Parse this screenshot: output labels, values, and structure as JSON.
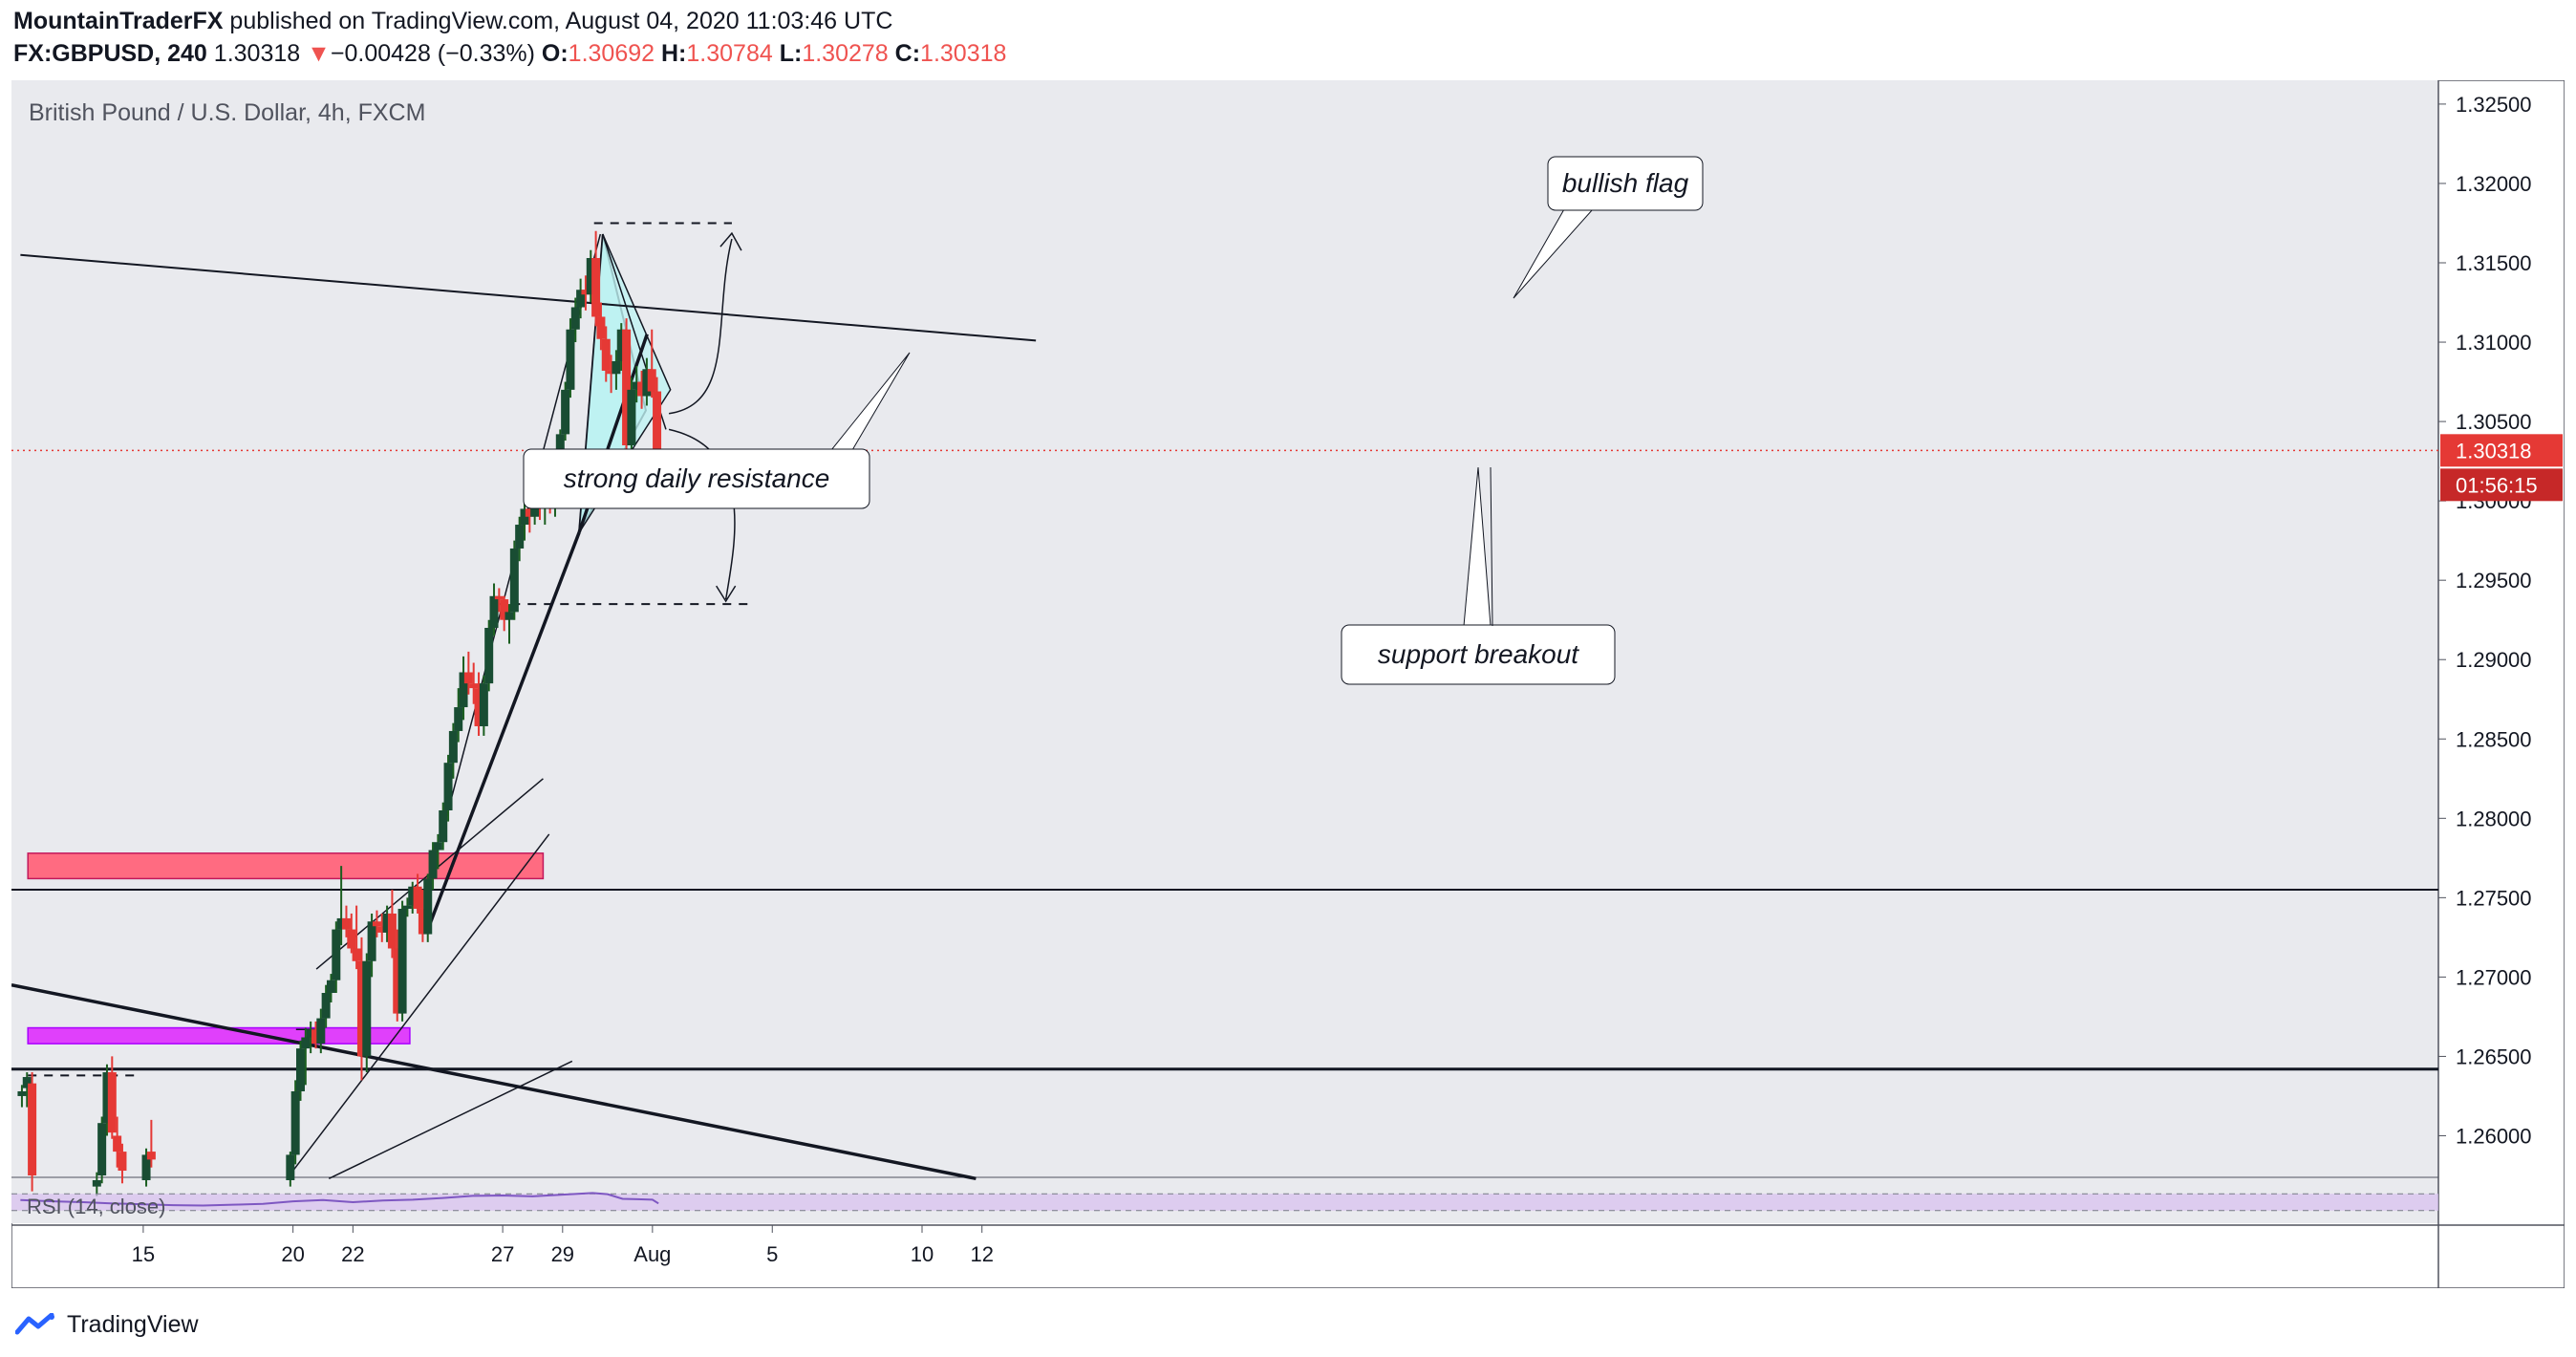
{
  "header": {
    "author": "MountainTraderFX",
    "published_text": "published on TradingView.com, August 04, 2020 11:03:46 UTC",
    "symbol": "FX:GBPUSD, 240",
    "last": "1.30318",
    "change_arrow": "▼",
    "change": "−0.00428 (−0.33%)",
    "o_label": "O:",
    "o": "1.30692",
    "h_label": "H:",
    "h": "1.30784",
    "l_label": "L:",
    "l": "1.30278",
    "c_label": "C:",
    "c": "1.30318"
  },
  "chart_data": {
    "type": "candlestick",
    "title": "British Pound / U.S. Dollar, 4h, FXCM",
    "ylim": [
      1.2575,
      1.3265
    ],
    "y_ticks": [
      "1.32500",
      "1.32000",
      "1.31500",
      "1.31000",
      "1.30500",
      "1.30000",
      "1.29500",
      "1.29000",
      "1.28500",
      "1.28000",
      "1.27500",
      "1.27000",
      "1.26500",
      "1.26000"
    ],
    "x_ticks": [
      {
        "label": "15",
        "t": 15
      },
      {
        "label": "20",
        "t": 20
      },
      {
        "label": "22",
        "t": 22
      },
      {
        "label": "27",
        "t": 27
      },
      {
        "label": "29",
        "t": 29
      },
      {
        "label": "Aug",
        "t": 32
      },
      {
        "label": "5",
        "t": 36
      },
      {
        "label": "10",
        "t": 41
      },
      {
        "label": "12",
        "t": 43
      }
    ],
    "last_price": {
      "value": 1.30318,
      "label": "1.30318",
      "countdown": "01:56:15",
      "color": "#e53935"
    },
    "candles": [
      [
        10.95,
        1.2625,
        1.2632,
        1.2618,
        1.2628
      ],
      [
        11.12,
        1.263,
        1.264,
        1.2618,
        1.2637
      ],
      [
        11.29,
        1.2633,
        1.264,
        1.2565,
        1.2575
      ],
      [
        13.45,
        1.2568,
        1.2577,
        1.2562,
        1.2572
      ],
      [
        13.62,
        1.2575,
        1.2612,
        1.257,
        1.2608
      ],
      [
        13.79,
        1.2608,
        1.2645,
        1.26,
        1.264
      ],
      [
        13.96,
        1.264,
        1.265,
        1.2598,
        1.2602
      ],
      [
        14.13,
        1.26,
        1.2612,
        1.258,
        1.259
      ],
      [
        14.3,
        1.259,
        1.2595,
        1.257,
        1.2578
      ],
      [
        15.1,
        1.2572,
        1.2592,
        1.2568,
        1.2588
      ],
      [
        15.27,
        1.259,
        1.261,
        1.258,
        1.2585
      ],
      [
        19.91,
        1.2572,
        1.259,
        1.2568,
        1.2588
      ],
      [
        20.08,
        1.2588,
        1.2635,
        1.2582,
        1.2628
      ],
      [
        20.25,
        1.2628,
        1.266,
        1.2622,
        1.2655
      ],
      [
        20.42,
        1.2655,
        1.2668,
        1.2632,
        1.2662
      ],
      [
        20.59,
        1.2662,
        1.2672,
        1.2652,
        1.2667
      ],
      [
        20.76,
        1.2667,
        1.2672,
        1.2655,
        1.2658
      ],
      [
        20.93,
        1.2658,
        1.268,
        1.2652,
        1.2674
      ],
      [
        21.1,
        1.2674,
        1.2695,
        1.2668,
        1.269
      ],
      [
        21.27,
        1.269,
        1.2702,
        1.2684,
        1.2698
      ],
      [
        21.44,
        1.2698,
        1.2735,
        1.269,
        1.273
      ],
      [
        21.61,
        1.273,
        1.277,
        1.272,
        1.2737
      ],
      [
        21.78,
        1.2737,
        1.2745,
        1.2725,
        1.273
      ],
      [
        21.95,
        1.273,
        1.274,
        1.2715,
        1.2718
      ],
      [
        22.12,
        1.2718,
        1.2745,
        1.2705,
        1.271
      ],
      [
        22.29,
        1.271,
        1.2725,
        1.2635,
        1.265
      ],
      [
        22.46,
        1.265,
        1.2715,
        1.264,
        1.271
      ],
      [
        22.63,
        1.271,
        1.274,
        1.27,
        1.2735
      ],
      [
        22.8,
        1.2735,
        1.2742,
        1.2725,
        1.2732
      ],
      [
        22.97,
        1.2732,
        1.274,
        1.2722,
        1.2728
      ],
      [
        23.14,
        1.2728,
        1.2745,
        1.2722,
        1.274
      ],
      [
        23.31,
        1.274,
        1.2755,
        1.2712,
        1.2718
      ],
      [
        23.48,
        1.2718,
        1.273,
        1.2672,
        1.2677
      ],
      [
        23.65,
        1.2677,
        1.2748,
        1.2672,
        1.2743
      ],
      [
        23.82,
        1.2743,
        1.275,
        1.2738,
        1.2745
      ],
      [
        23.99,
        1.2745,
        1.276,
        1.274,
        1.2757
      ],
      [
        24.16,
        1.2757,
        1.2765,
        1.274,
        1.2743
      ],
      [
        24.33,
        1.2743,
        1.2755,
        1.2722,
        1.2727
      ],
      [
        24.5,
        1.2727,
        1.2765,
        1.2722,
        1.2762
      ],
      [
        24.67,
        1.2762,
        1.2785,
        1.2755,
        1.278
      ],
      [
        24.84,
        1.278,
        1.279,
        1.2768,
        1.2785
      ],
      [
        25.01,
        1.2785,
        1.281,
        1.278,
        1.2805
      ],
      [
        25.18,
        1.2805,
        1.284,
        1.2798,
        1.2835
      ],
      [
        25.35,
        1.2835,
        1.286,
        1.2825,
        1.2855
      ],
      [
        25.52,
        1.2855,
        1.2882,
        1.2848,
        1.287
      ],
      [
        25.69,
        1.287,
        1.2902,
        1.2862,
        1.2892
      ],
      [
        25.86,
        1.2892,
        1.2905,
        1.2878,
        1.2885
      ],
      [
        26.03,
        1.2885,
        1.2898,
        1.2872,
        1.2882
      ],
      [
        26.2,
        1.2882,
        1.2892,
        1.2852,
        1.2858
      ],
      [
        26.37,
        1.2858,
        1.289,
        1.2852,
        1.2885
      ],
      [
        26.54,
        1.2885,
        1.2925,
        1.288,
        1.292
      ],
      [
        26.71,
        1.292,
        1.2948,
        1.2915,
        1.294
      ],
      [
        26.88,
        1.294,
        1.2945,
        1.293,
        1.2938
      ],
      [
        27.05,
        1.2938,
        1.294,
        1.2918,
        1.2925
      ],
      [
        27.22,
        1.2925,
        1.2935,
        1.291,
        1.293
      ],
      [
        27.39,
        1.293,
        1.2975,
        1.2925,
        1.297
      ],
      [
        27.56,
        1.297,
        1.299,
        1.2962,
        1.2985
      ],
      [
        27.73,
        1.2985,
        1.3002,
        1.2975,
        1.2995
      ],
      [
        27.9,
        1.2995,
        1.3005,
        1.298,
        1.299
      ],
      [
        28.07,
        1.299,
        1.302,
        1.2985,
        1.3015
      ],
      [
        28.24,
        1.3015,
        1.3022,
        1.2988,
        1.2995
      ],
      [
        28.41,
        1.2995,
        1.3008,
        1.2985,
        1.3005
      ],
      [
        28.58,
        1.3005,
        1.3012,
        1.2992,
        1.2998
      ],
      [
        28.75,
        1.2998,
        1.3012,
        1.299,
        1.3008
      ],
      [
        28.92,
        1.3008,
        1.3045,
        1.3002,
        1.3042
      ],
      [
        29.09,
        1.3042,
        1.3075,
        1.3038,
        1.307
      ],
      [
        29.26,
        1.307,
        1.3115,
        1.3065,
        1.3108
      ],
      [
        29.43,
        1.3108,
        1.3128,
        1.31,
        1.3122
      ],
      [
        29.6,
        1.3122,
        1.314,
        1.3115,
        1.3133
      ],
      [
        29.77,
        1.3133,
        1.3142,
        1.312,
        1.313
      ],
      [
        29.94,
        1.313,
        1.3158,
        1.3125,
        1.3153
      ],
      [
        30.11,
        1.3153,
        1.317,
        1.311,
        1.3116
      ],
      [
        30.28,
        1.3116,
        1.3125,
        1.3095,
        1.3102
      ],
      [
        30.45,
        1.3102,
        1.311,
        1.3075,
        1.3082
      ],
      [
        30.62,
        1.3082,
        1.3092,
        1.3068,
        1.308
      ],
      [
        30.79,
        1.308,
        1.3095,
        1.307,
        1.3088
      ],
      [
        30.96,
        1.3088,
        1.3112,
        1.3082,
        1.3108
      ],
      [
        31.13,
        1.3108,
        1.3115,
        1.3025,
        1.3035
      ],
      [
        31.3,
        1.3035,
        1.3078,
        1.3025,
        1.307
      ],
      [
        31.47,
        1.307,
        1.3085,
        1.3062,
        1.3075
      ],
      [
        31.64,
        1.3075,
        1.3082,
        1.3058,
        1.3066
      ],
      [
        31.81,
        1.3066,
        1.309,
        1.306,
        1.3083
      ],
      [
        31.98,
        1.3083,
        1.3108,
        1.3065,
        1.3069
      ],
      [
        32.15,
        1.3069,
        1.3078,
        1.3028,
        1.3032
      ]
    ],
    "rsi": {
      "label": "RSI (14, close)",
      "upper": 70,
      "lower": 30,
      "t": [
        10.9,
        12,
        13,
        14,
        15,
        16,
        17,
        18,
        19,
        20,
        21,
        22,
        23,
        24,
        25,
        26,
        27,
        28,
        29,
        30,
        30.5,
        31,
        31.5,
        32,
        32.2
      ],
      "values": [
        55,
        52,
        50,
        47,
        45,
        43,
        42,
        44,
        46,
        52,
        55,
        50,
        54,
        56,
        60,
        65,
        66,
        64,
        68,
        72,
        69,
        58,
        57,
        56,
        47
      ]
    },
    "lines": {
      "daily_resistance": {
        "t1": 10.9,
        "y1": 1.3155,
        "t2": 44.8,
        "y2": 1.3101
      },
      "support_1_275": {
        "y": 1.2755
      },
      "support_1_264": {
        "y": 1.2642
      },
      "pink_zone": {
        "t1": 11.15,
        "t2": 23.9,
        "y1": 1.2658,
        "y2": 1.2668,
        "color": "#e040fb"
      },
      "red_zone": {
        "t1": 11.15,
        "t2": 28.35,
        "y1": 1.2762,
        "y2": 1.2778,
        "color": "#ff6b81"
      },
      "upper_dashed": {
        "t1": 30.05,
        "t2": 34.65,
        "y": 1.3175
      },
      "lower_dashed": {
        "t1": 26.75,
        "t2": 35.35,
        "y": 1.2935
      },
      "left_dashed": {
        "t1": 11.15,
        "t2": 14.8,
        "y": 1.2638
      },
      "flag_triangle": [
        [
          29.55,
          1.298
        ],
        [
          30.34,
          1.3168
        ],
        [
          31.78,
          1.3057
        ]
      ],
      "flag_extension": [
        [
          29.55,
          1.298
        ],
        [
          32.6,
          1.307
        ],
        [
          30.34,
          1.3168
        ],
        [
          32.45,
          1.3045
        ]
      ]
    },
    "annotations": [
      {
        "text": "strong daily resistance"
      },
      {
        "text": "bullish flag"
      },
      {
        "text": "support breakout"
      }
    ]
  },
  "footer": {
    "brand": "TradingView"
  }
}
